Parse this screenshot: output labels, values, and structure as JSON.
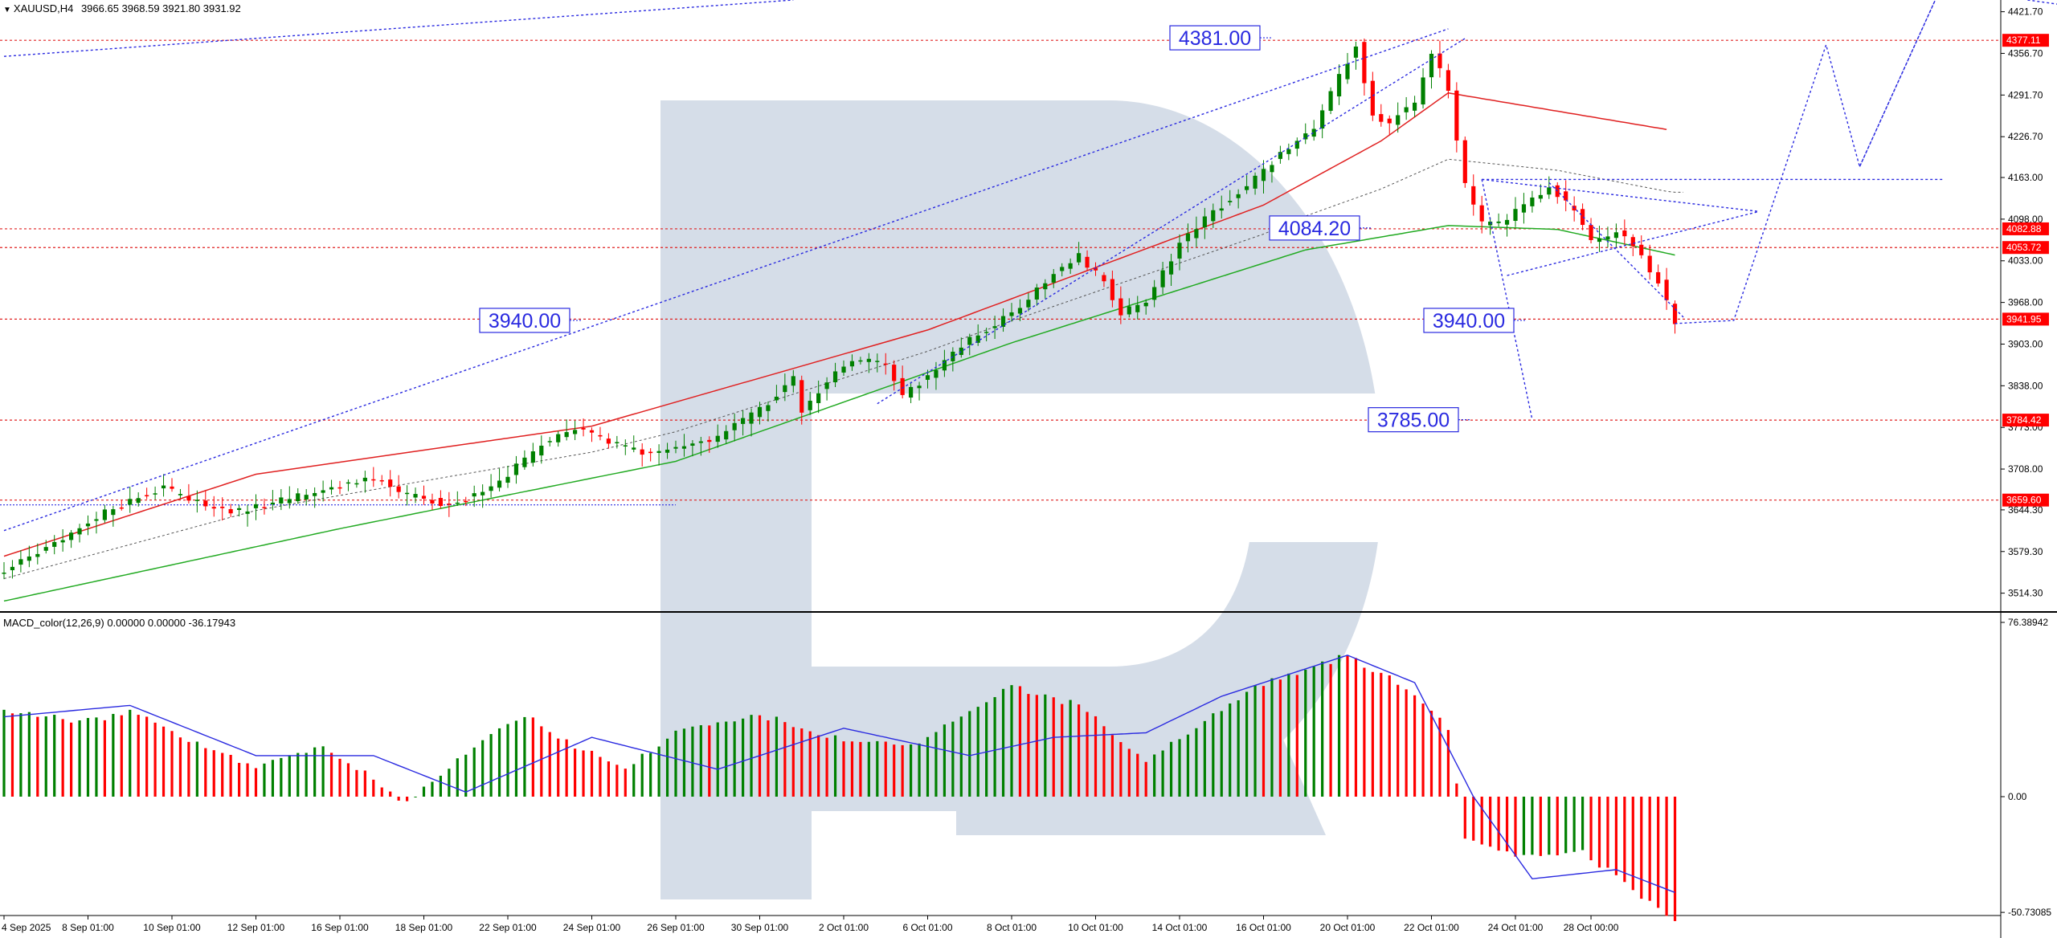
{
  "header": {
    "symbol": "XAUUSD,H4",
    "ohlc": "3966.65 3968.59 3921.80 3931.92"
  },
  "macd_header": {
    "label": "MACD_color(12,26,9) 0.00000 0.00000 -36.17943"
  },
  "colors": {
    "bull": "#008000",
    "bear": "#ff0000",
    "ma_fast": "#e02020",
    "ma_slow": "#22aa22",
    "forecast": "#2a2ae0",
    "signal": "#2a2ae0",
    "level_line": "#e02020",
    "tag_bg": "#ff0000",
    "watermark": "#d5dde8"
  },
  "chart_data": [
    {
      "type": "candlestick",
      "symbol": "XAUUSD",
      "timeframe": "H4",
      "y_ticks": [
        "4421.70",
        "4356.70",
        "4291.70",
        "4226.70",
        "4163.00",
        "4098.00",
        "4033.00",
        "3968.00",
        "3903.00",
        "3838.00",
        "3773.00",
        "3708.00",
        "3644.30",
        "3579.30",
        "3514.30"
      ],
      "ylim": [
        3485,
        4440
      ],
      "x_ticks": [
        "4 Sep 2025",
        "8 Sep 01:00",
        "10 Sep 01:00",
        "12 Sep 01:00",
        "16 Sep 01:00",
        "18 Sep 01:00",
        "22 Sep 01:00",
        "24 Sep 01:00",
        "26 Sep 01:00",
        "30 Sep 01:00",
        "2 Oct 01:00",
        "6 Oct 01:00",
        "8 Oct 01:00",
        "10 Oct 01:00",
        "14 Oct 01:00",
        "16 Oct 01:00",
        "20 Oct 01:00",
        "22 Oct 01:00",
        "24 Oct 01:00",
        "28 Oct 00:00"
      ],
      "price_tags": [
        {
          "value": "4377.11",
          "price": 4377.11
        },
        {
          "value": "4082.88",
          "price": 4082.88
        },
        {
          "value": "4053.72",
          "price": 4053.72
        },
        {
          "value": "3941.95",
          "price": 3941.95
        },
        {
          "value": "3784.42",
          "price": 3784.42
        },
        {
          "value": "3659.60",
          "price": 3659.6
        }
      ],
      "annotations": [
        {
          "text": "4381.00",
          "price": 4381.0,
          "x_label": "16 Oct 01:00"
        },
        {
          "text": "4084.20",
          "price": 4084.2,
          "x_label": "20 Oct 01:00"
        },
        {
          "text": "3940.00",
          "price": 3940.0,
          "x_label": "22 Sep 01:00"
        },
        {
          "text": "3940.00",
          "price": 3940.0,
          "x_label": "24 Oct 01:00"
        },
        {
          "text": "3785.00",
          "price": 3785.0,
          "x_label": "22 Oct 01:00"
        }
      ],
      "close_path": [
        {
          "t": 0,
          "p": 3550
        },
        {
          "t": 3,
          "p": 3568
        },
        {
          "t": 7,
          "p": 3600
        },
        {
          "t": 12,
          "p": 3640
        },
        {
          "t": 16,
          "p": 3665
        },
        {
          "t": 19,
          "p": 3678
        },
        {
          "t": 22,
          "p": 3660
        },
        {
          "t": 27,
          "p": 3640
        },
        {
          "t": 32,
          "p": 3655
        },
        {
          "t": 37,
          "p": 3672
        },
        {
          "t": 42,
          "p": 3690
        },
        {
          "t": 45,
          "p": 3688
        },
        {
          "t": 48,
          "p": 3668
        },
        {
          "t": 52,
          "p": 3655
        },
        {
          "t": 56,
          "p": 3665
        },
        {
          "t": 60,
          "p": 3700
        },
        {
          "t": 64,
          "p": 3745
        },
        {
          "t": 68,
          "p": 3770
        },
        {
          "t": 72,
          "p": 3750
        },
        {
          "t": 76,
          "p": 3732
        },
        {
          "t": 80,
          "p": 3740
        },
        {
          "t": 85,
          "p": 3758
        },
        {
          "t": 90,
          "p": 3800
        },
        {
          "t": 94,
          "p": 3850
        },
        {
          "t": 95,
          "p": 3795
        },
        {
          "t": 98,
          "p": 3845
        },
        {
          "t": 101,
          "p": 3880
        },
        {
          "t": 105,
          "p": 3870
        },
        {
          "t": 107,
          "p": 3820
        },
        {
          "t": 110,
          "p": 3855
        },
        {
          "t": 115,
          "p": 3910
        },
        {
          "t": 120,
          "p": 3950
        },
        {
          "t": 125,
          "p": 4015
        },
        {
          "t": 128,
          "p": 4040
        },
        {
          "t": 131,
          "p": 4000
        },
        {
          "t": 133,
          "p": 3950
        },
        {
          "t": 136,
          "p": 3970
        },
        {
          "t": 140,
          "p": 4060
        },
        {
          "t": 144,
          "p": 4110
        },
        {
          "t": 148,
          "p": 4150
        },
        {
          "t": 152,
          "p": 4200
        },
        {
          "t": 156,
          "p": 4240
        },
        {
          "t": 159,
          "p": 4320
        },
        {
          "t": 161,
          "p": 4370
        },
        {
          "t": 163,
          "p": 4260
        },
        {
          "t": 165,
          "p": 4250
        },
        {
          "t": 168,
          "p": 4280
        },
        {
          "t": 170,
          "p": 4360
        },
        {
          "t": 172,
          "p": 4300
        },
        {
          "t": 174,
          "p": 4150
        },
        {
          "t": 176,
          "p": 4090
        },
        {
          "t": 178,
          "p": 4090
        },
        {
          "t": 181,
          "p": 4120
        },
        {
          "t": 184,
          "p": 4150
        },
        {
          "t": 187,
          "p": 4110
        },
        {
          "t": 189,
          "p": 4060
        },
        {
          "t": 192,
          "p": 4080
        },
        {
          "t": 195,
          "p": 4040
        },
        {
          "t": 197,
          "p": 4000
        },
        {
          "t": 199,
          "p": 3935
        }
      ],
      "ma_fast": [
        {
          "t": 0,
          "p": 3572
        },
        {
          "t": 30,
          "p": 3700
        },
        {
          "t": 70,
          "p": 3775
        },
        {
          "t": 110,
          "p": 3925
        },
        {
          "t": 150,
          "p": 4120
        },
        {
          "t": 164,
          "p": 4220
        },
        {
          "t": 172,
          "p": 4295
        },
        {
          "t": 198,
          "p": 4238
        }
      ],
      "ma_slow": [
        {
          "t": 0,
          "p": 3502
        },
        {
          "t": 40,
          "p": 3615
        },
        {
          "t": 80,
          "p": 3720
        },
        {
          "t": 120,
          "p": 3905
        },
        {
          "t": 155,
          "p": 4050
        },
        {
          "t": 172,
          "p": 4088
        },
        {
          "t": 185,
          "p": 4082
        },
        {
          "t": 199,
          "p": 4042
        }
      ],
      "forecast_path": [
        {
          "t": 199,
          "p": 3935
        },
        {
          "t": 206,
          "p": 3940
        },
        {
          "t": 217,
          "p": 4370
        },
        {
          "t": 221,
          "p": 4180
        },
        {
          "t": 230,
          "p": 4440
        }
      ]
    },
    {
      "type": "bar",
      "name": "MACD_color(12,26,9)",
      "y_ticks": [
        "76.38942",
        "0.00",
        "-50.73085"
      ],
      "ylim": [
        -50.73085,
        76.38942
      ],
      "histogram_path": [
        {
          "t": 0,
          "v": 37
        },
        {
          "t": 10,
          "v": 33
        },
        {
          "t": 15,
          "v": 37
        },
        {
          "t": 22,
          "v": 25
        },
        {
          "t": 30,
          "v": 13
        },
        {
          "t": 38,
          "v": 22
        },
        {
          "t": 44,
          "v": 8
        },
        {
          "t": 48,
          "v": -3
        },
        {
          "t": 56,
          "v": 22
        },
        {
          "t": 62,
          "v": 36
        },
        {
          "t": 68,
          "v": 22
        },
        {
          "t": 74,
          "v": 12
        },
        {
          "t": 80,
          "v": 28
        },
        {
          "t": 90,
          "v": 36
        },
        {
          "t": 100,
          "v": 25
        },
        {
          "t": 108,
          "v": 22
        },
        {
          "t": 120,
          "v": 48
        },
        {
          "t": 128,
          "v": 40
        },
        {
          "t": 136,
          "v": 16
        },
        {
          "t": 150,
          "v": 50
        },
        {
          "t": 160,
          "v": 62
        },
        {
          "t": 164,
          "v": 54
        },
        {
          "t": 168,
          "v": 45
        },
        {
          "t": 172,
          "v": 30
        },
        {
          "t": 174,
          "v": -18
        },
        {
          "t": 181,
          "v": -26
        },
        {
          "t": 188,
          "v": -24
        },
        {
          "t": 199,
          "v": -55
        }
      ],
      "signal_path": [
        {
          "t": 0,
          "v": 35
        },
        {
          "t": 15,
          "v": 40
        },
        {
          "t": 30,
          "v": 18
        },
        {
          "t": 44,
          "v": 18
        },
        {
          "t": 55,
          "v": 2
        },
        {
          "t": 70,
          "v": 26
        },
        {
          "t": 85,
          "v": 12
        },
        {
          "t": 100,
          "v": 30
        },
        {
          "t": 115,
          "v": 18
        },
        {
          "t": 125,
          "v": 26
        },
        {
          "t": 136,
          "v": 28
        },
        {
          "t": 145,
          "v": 44
        },
        {
          "t": 160,
          "v": 62
        },
        {
          "t": 168,
          "v": 50
        },
        {
          "t": 175,
          "v": 0
        },
        {
          "t": 182,
          "v": -36
        },
        {
          "t": 192,
          "v": -32
        },
        {
          "t": 199,
          "v": -42
        }
      ]
    }
  ]
}
